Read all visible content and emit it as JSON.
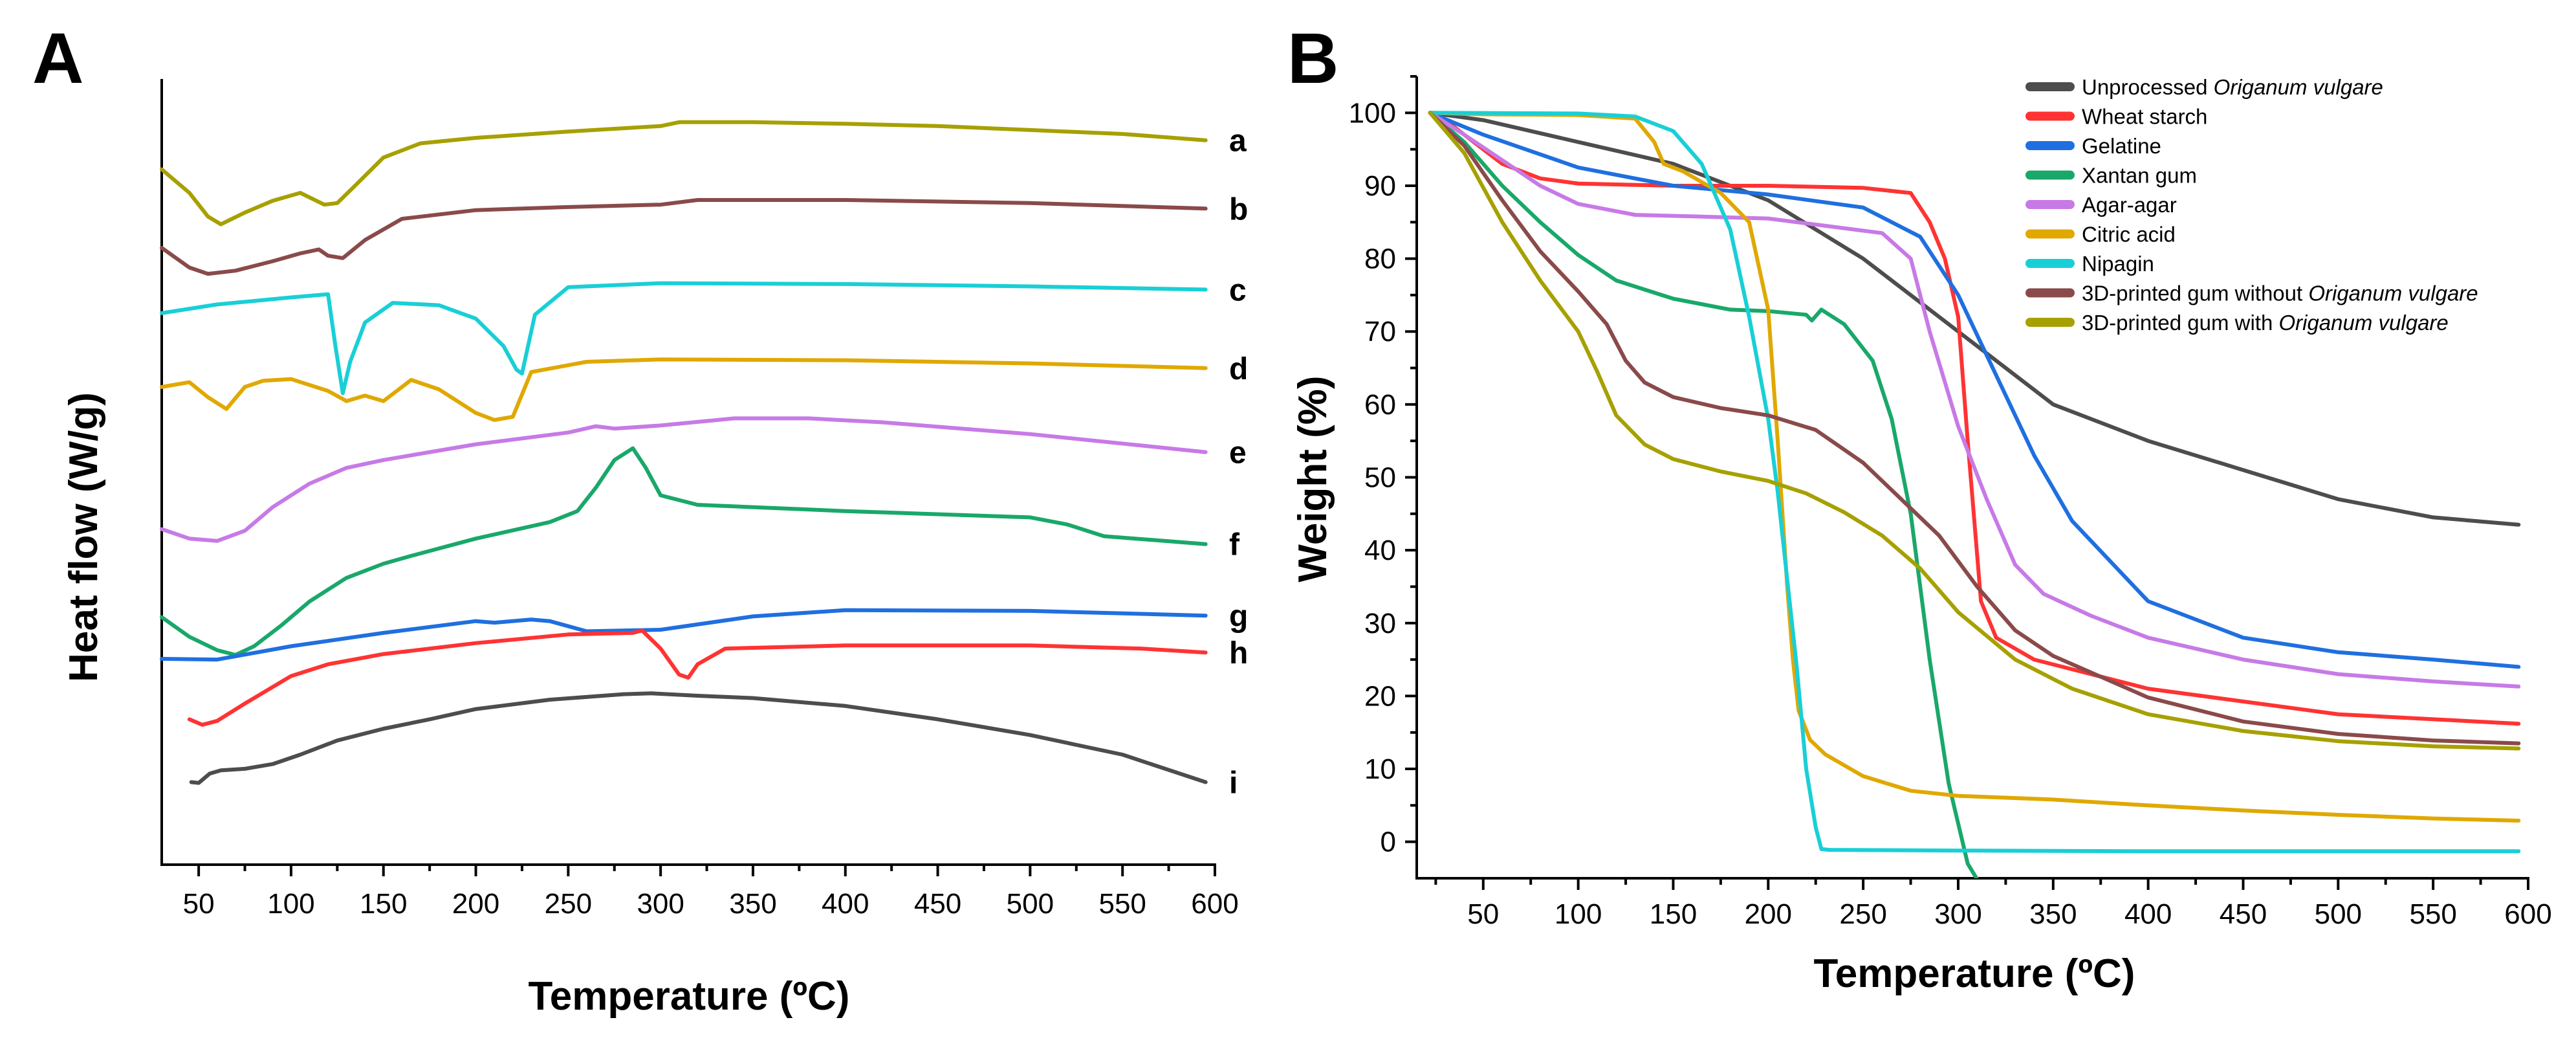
{
  "colors": {
    "dark_gray": "#4d4d4d",
    "red": "#ff3333",
    "blue": "#1f6fe0",
    "green": "#19a86a",
    "violet": "#c77ae6",
    "orange": "#e0a800",
    "cyan": "#19cfd6",
    "brown": "#8a4a4a",
    "olive": "#a6a000"
  },
  "chart_data": [
    {
      "panel": "A",
      "type": "line",
      "title": "",
      "xlabel": "Temperature (ºC)",
      "ylabel": "Heat flow (W/g)",
      "xlim": [
        30,
        600
      ],
      "ylim": [
        0,
        100
      ],
      "yticks_visible": false,
      "grid": false,
      "legend": "none",
      "xticks": [
        50,
        100,
        150,
        200,
        250,
        300,
        350,
        400,
        450,
        500,
        550,
        600
      ],
      "series": [
        {
          "name": "a",
          "color": "olive",
          "x": [
            30,
            45,
            55,
            62,
            75,
            90,
            105,
            118,
            125,
            135,
            150,
            170,
            200,
            250,
            300,
            310,
            350,
            400,
            450,
            500,
            550,
            595
          ],
          "y": [
            88.5,
            85.5,
            82.5,
            81.5,
            83,
            84.5,
            85.5,
            84,
            84.2,
            86.5,
            90,
            91.8,
            92.5,
            93.3,
            94,
            94.5,
            94.5,
            94.3,
            94,
            93.5,
            93,
            92.2
          ]
        },
        {
          "name": "b",
          "color": "brown",
          "x": [
            30,
            45,
            55,
            70,
            90,
            105,
            115,
            120,
            128,
            140,
            160,
            200,
            250,
            300,
            320,
            400,
            500,
            595
          ],
          "y": [
            78.5,
            76,
            75.2,
            75.6,
            76.8,
            77.8,
            78.3,
            77.5,
            77.2,
            79.5,
            82.2,
            83.3,
            83.7,
            84,
            84.6,
            84.6,
            84.2,
            83.5
          ]
        },
        {
          "name": "c",
          "color": "cyan",
          "x": [
            30,
            60,
            100,
            120,
            124,
            128,
            132,
            140,
            155,
            180,
            200,
            215,
            222,
            225,
            232,
            250,
            300,
            400,
            500,
            595
          ],
          "y": [
            70.2,
            71.3,
            72.2,
            72.6,
            66,
            60,
            64,
            69,
            71.5,
            71.2,
            69.5,
            66,
            63,
            62.5,
            70,
            73.5,
            74,
            73.9,
            73.6,
            73.2
          ]
        },
        {
          "name": "d",
          "color": "orange",
          "x": [
            30,
            45,
            55,
            65,
            75,
            85,
            100,
            120,
            130,
            140,
            150,
            165,
            180,
            200,
            210,
            220,
            230,
            260,
            300,
            400,
            500,
            595
          ],
          "y": [
            60.8,
            61.4,
            59.5,
            58,
            60.8,
            61.6,
            61.8,
            60.3,
            59,
            59.7,
            59,
            61.7,
            60.5,
            57.5,
            56.6,
            57,
            62.7,
            64,
            64.3,
            64.2,
            63.8,
            63.2
          ]
        },
        {
          "name": "e",
          "color": "violet",
          "x": [
            30,
            45,
            60,
            75,
            90,
            110,
            130,
            150,
            200,
            250,
            265,
            275,
            300,
            340,
            380,
            420,
            500,
            595
          ],
          "y": [
            42.7,
            41.5,
            41.2,
            42.5,
            45.5,
            48.5,
            50.5,
            51.5,
            53.5,
            55,
            55.8,
            55.5,
            55.9,
            56.8,
            56.8,
            56.3,
            54.8,
            52.5
          ]
        },
        {
          "name": "f",
          "color": "green",
          "x": [
            30,
            45,
            60,
            70,
            80,
            95,
            110,
            130,
            150,
            165,
            200,
            240,
            255,
            265,
            275,
            285,
            292,
            300,
            320,
            400,
            500,
            520,
            540,
            595
          ],
          "y": [
            31.5,
            29,
            27.3,
            26.7,
            27.8,
            30.5,
            33.5,
            36.5,
            38.3,
            39.3,
            41.5,
            43.6,
            45,
            48,
            51.5,
            53,
            50.5,
            47,
            45.8,
            45,
            44.2,
            43.3,
            41.8,
            40.8
          ]
        },
        {
          "name": "g",
          "color": "blue",
          "x": [
            30,
            60,
            100,
            150,
            200,
            210,
            230,
            240,
            260,
            300,
            350,
            400,
            500,
            595
          ],
          "y": [
            26.2,
            26.1,
            27.8,
            29.5,
            31,
            30.8,
            31.2,
            31,
            29.7,
            29.9,
            31.6,
            32.4,
            32.3,
            31.7
          ]
        },
        {
          "name": "h",
          "color": "red",
          "x": [
            45,
            52,
            60,
            75,
            100,
            120,
            150,
            200,
            250,
            285,
            290,
            300,
            310,
            315,
            320,
            335,
            400,
            500,
            560,
            595
          ],
          "y": [
            18.5,
            17.8,
            18.3,
            20.5,
            24,
            25.5,
            26.8,
            28.2,
            29.3,
            29.5,
            29.8,
            27.5,
            24.2,
            23.8,
            25.5,
            27.5,
            27.9,
            27.9,
            27.5,
            27
          ]
        },
        {
          "name": "i",
          "color": "dark_gray",
          "x": [
            46,
            50,
            52,
            56,
            62,
            75,
            90,
            105,
            125,
            150,
            175,
            200,
            240,
            280,
            295,
            320,
            350,
            400,
            450,
            500,
            550,
            595
          ],
          "y": [
            10.5,
            10.4,
            10.8,
            11.6,
            12,
            12.2,
            12.8,
            14,
            15.8,
            17.3,
            18.5,
            19.8,
            21,
            21.7,
            21.8,
            21.5,
            21.2,
            20.2,
            18.5,
            16.5,
            14,
            10.5
          ]
        }
      ]
    },
    {
      "panel": "B",
      "type": "line",
      "title": "",
      "xlabel": "Temperature (ºC)",
      "ylabel": "Weight (%)",
      "xlim": [
        15,
        600
      ],
      "ylim": [
        -5,
        105
      ],
      "grid": false,
      "legend": "top-right",
      "xticks": [
        50,
        100,
        150,
        200,
        250,
        300,
        350,
        400,
        450,
        500,
        550,
        600
      ],
      "yticks": [
        0,
        10,
        20,
        30,
        40,
        50,
        60,
        70,
        80,
        90,
        100
      ],
      "series": [
        {
          "name": "Unprocessed Origanum vulgare",
          "name_parts": [
            "Unprocessed ",
            "Origanum vulgare"
          ],
          "color": "dark_gray",
          "x": [
            22,
            50,
            100,
            150,
            200,
            250,
            300,
            350,
            400,
            450,
            500,
            550,
            595
          ],
          "y": [
            100,
            99,
            96,
            93,
            88,
            80,
            70,
            60,
            55,
            51,
            47,
            44.5,
            43.5
          ]
        },
        {
          "name": "Wheat starch",
          "name_parts": [
            "Wheat starch"
          ],
          "color": "red",
          "x": [
            22,
            30,
            40,
            60,
            80,
            100,
            150,
            200,
            250,
            275,
            285,
            293,
            300,
            305,
            312,
            320,
            340,
            400,
            500,
            595
          ],
          "y": [
            100,
            99,
            97,
            93,
            91,
            90.3,
            90,
            90,
            89.7,
            89,
            85,
            80,
            72,
            55,
            33,
            28,
            25,
            21,
            17.5,
            16.2
          ]
        },
        {
          "name": "Gelatine",
          "name_parts": [
            "Gelatine"
          ],
          "color": "blue",
          "x": [
            22,
            50,
            100,
            150,
            200,
            250,
            280,
            300,
            320,
            340,
            360,
            400,
            450,
            500,
            550,
            595
          ],
          "y": [
            100,
            97,
            92.5,
            90,
            88.8,
            87,
            83,
            75,
            64,
            53,
            44,
            33,
            28,
            26,
            25,
            24
          ]
        },
        {
          "name": "Xantan gum",
          "name_parts": [
            "Xantan gum"
          ],
          "color": "green",
          "x": [
            22,
            40,
            60,
            80,
            100,
            120,
            150,
            180,
            200,
            220,
            223,
            228,
            240,
            255,
            265,
            275,
            285,
            295,
            305,
            312
          ],
          "y": [
            100,
            96,
            90,
            85,
            80.5,
            77,
            74.5,
            73,
            72.8,
            72.3,
            71.5,
            73,
            71,
            66,
            58,
            45,
            25,
            8,
            -3,
            -6
          ]
        },
        {
          "name": "Agar-agar",
          "name_parts": [
            "Agar-agar"
          ],
          "color": "violet",
          "x": [
            22,
            40,
            60,
            80,
            100,
            130,
            160,
            200,
            230,
            260,
            275,
            285,
            300,
            315,
            330,
            345,
            370,
            400,
            450,
            500,
            550,
            595
          ],
          "y": [
            100,
            97,
            93.5,
            90,
            87.5,
            86,
            85.8,
            85.5,
            84.5,
            83.5,
            80,
            70,
            57,
            47,
            38,
            34,
            31,
            28,
            25,
            23,
            22,
            21.3
          ]
        },
        {
          "name": "Citric acid",
          "name_parts": [
            "Citric acid"
          ],
          "color": "orange",
          "x": [
            22,
            50,
            100,
            130,
            140,
            145,
            155,
            165,
            175,
            190,
            200,
            205,
            210,
            213,
            216,
            222,
            230,
            250,
            275,
            300,
            350,
            400,
            450,
            500,
            550,
            595
          ],
          "y": [
            100,
            99.8,
            99.7,
            99.2,
            96,
            93,
            92,
            90.5,
            89,
            85,
            73,
            55,
            35,
            25,
            18,
            14,
            12,
            9,
            7,
            6.3,
            5.8,
            5,
            4.3,
            3.7,
            3.2,
            2.9
          ]
        },
        {
          "name": "Nipagin",
          "name_parts": [
            "Nipagin"
          ],
          "color": "cyan",
          "x": [
            22,
            100,
            130,
            150,
            165,
            180,
            190,
            200,
            205,
            210,
            215,
            220,
            225,
            228,
            232,
            300,
            400,
            500,
            595
          ],
          "y": [
            100,
            99.9,
            99.5,
            97.5,
            93,
            84,
            72,
            58,
            48,
            36,
            24,
            10,
            2,
            -1,
            -1.1,
            -1.2,
            -1.3,
            -1.3,
            -1.3
          ]
        },
        {
          "name": "3D-printed gum without Origanum vulgare",
          "name_parts": [
            "3D-printed gum without ",
            "Origanum vulgare"
          ],
          "color": "brown",
          "x": [
            22,
            40,
            60,
            80,
            100,
            115,
            125,
            135,
            150,
            175,
            200,
            225,
            250,
            270,
            290,
            310,
            330,
            350,
            400,
            450,
            500,
            550,
            595
          ],
          "y": [
            100,
            95.5,
            88,
            81,
            75.5,
            71,
            66,
            63,
            61,
            59.5,
            58.5,
            56.5,
            52,
            47,
            42,
            35,
            29,
            25.5,
            19.8,
            16.5,
            14.8,
            13.9,
            13.5
          ]
        },
        {
          "name": "3D-printed gum with Origanum vulgare",
          "name_parts": [
            "3D-printed gum with ",
            "Origanum vulgare"
          ],
          "color": "olive",
          "x": [
            22,
            40,
            60,
            80,
            100,
            110,
            120,
            135,
            150,
            175,
            200,
            220,
            240,
            260,
            280,
            300,
            330,
            360,
            400,
            450,
            500,
            550,
            595
          ],
          "y": [
            100,
            94.5,
            85,
            77,
            70,
            64.5,
            58.5,
            54.5,
            52.5,
            50.8,
            49.5,
            47.8,
            45.2,
            42,
            37.5,
            31.5,
            25,
            21,
            17.5,
            15.2,
            13.8,
            13.1,
            12.8
          ]
        }
      ]
    }
  ]
}
